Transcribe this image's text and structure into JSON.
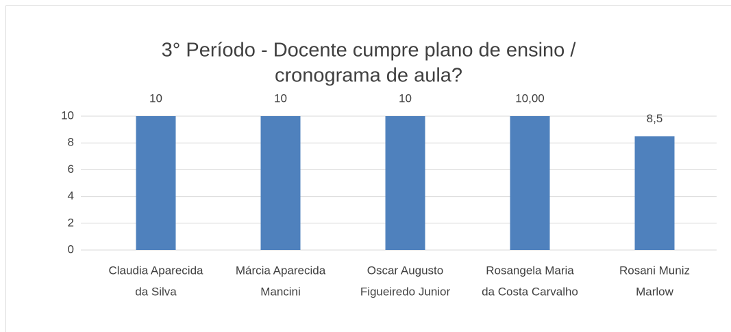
{
  "chart_data": {
    "type": "bar",
    "title": [
      "3° Período - Docente cumpre plano de ensino /",
      "cronograma de aula?"
    ],
    "categories": [
      [
        "Claudia Aparecida",
        "da Silva"
      ],
      [
        "Márcia Aparecida",
        "Mancini"
      ],
      [
        "Oscar Augusto",
        "Figueiredo Junior"
      ],
      [
        "Rosangela Maria",
        "da Costa Carvalho"
      ],
      [
        "Rosani Muniz",
        "Marlow"
      ]
    ],
    "values": [
      10,
      10,
      10,
      10,
      8.5
    ],
    "value_labels": [
      "10",
      "10",
      "10",
      "10,00",
      "8,5"
    ],
    "color": "#4f81bd",
    "ylim": [
      0,
      10
    ],
    "yticks": [
      0,
      2,
      4,
      6,
      8,
      10
    ],
    "grid": true
  }
}
